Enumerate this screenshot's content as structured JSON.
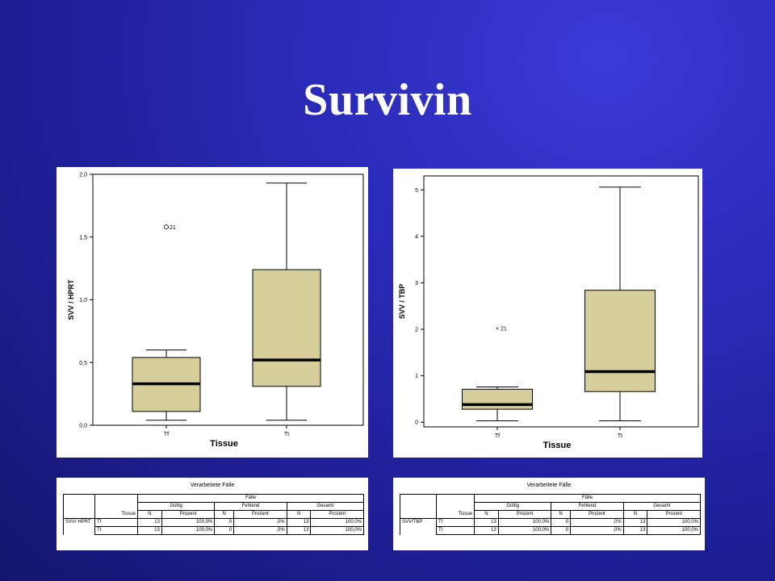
{
  "title": "Survivin",
  "chart_data": [
    {
      "type": "box",
      "xlabel": "Tissue",
      "ylabel": "SVV / HPRT",
      "ylim": [
        0.0,
        2.0
      ],
      "yticks": [
        0.0,
        0.5,
        1.0,
        1.5,
        2.0
      ],
      "ytick_labels": [
        "0,0",
        "0,5",
        "1,0",
        "1,5",
        "2,0"
      ],
      "categories": [
        "Tf",
        "Tt"
      ],
      "boxes": [
        {
          "category": "Tf",
          "min": 0.04,
          "q1": 0.11,
          "median": 0.33,
          "q3": 0.54,
          "max": 0.6
        },
        {
          "category": "Tt",
          "min": 0.04,
          "q1": 0.31,
          "median": 0.52,
          "q3": 1.24,
          "max": 1.93
        }
      ],
      "outliers": [
        {
          "category": "Tf",
          "value": 1.58,
          "label": "21",
          "marker": "o"
        }
      ],
      "box_color": "#d6cf9c"
    },
    {
      "type": "box",
      "xlabel": "Tissue",
      "ylabel": "SVV / TBP",
      "ylim": [
        -0.1,
        5.3
      ],
      "yticks": [
        0,
        1,
        2,
        3,
        4,
        5
      ],
      "ytick_labels": [
        "0",
        "1",
        "2",
        "3",
        "4",
        "5"
      ],
      "categories": [
        "Tf",
        "Tt"
      ],
      "boxes": [
        {
          "category": "Tf",
          "min": 0.03,
          "q1": 0.28,
          "median": 0.38,
          "q3": 0.71,
          "max": 0.76
        },
        {
          "category": "Tt",
          "min": 0.03,
          "q1": 0.66,
          "median": 1.09,
          "q3": 2.84,
          "max": 5.06
        }
      ],
      "outliers": [
        {
          "category": "Tf",
          "value": 2.02,
          "label": "21",
          "marker": "x"
        }
      ],
      "box_color": "#d6cf9c"
    }
  ],
  "tables": [
    {
      "caption": "Verarbeitete Fälle",
      "group_header": "Fälle",
      "row_var": "Tissue",
      "col_groups": [
        "Gültig",
        "Fehlend",
        "Gesamt"
      ],
      "sub_headers": [
        "N",
        "Prozent",
        "N",
        "Prozent",
        "N",
        "Prozent"
      ],
      "dependent": "SVV/ HPRT",
      "rows": [
        {
          "tissue": "Tf",
          "values": [
            "13",
            "100,0%",
            "0",
            ",0%",
            "13",
            "100,0%"
          ]
        },
        {
          "tissue": "Tt",
          "values": [
            "13",
            "100,0%",
            "0",
            ",0%",
            "13",
            "100,0%"
          ]
        }
      ]
    },
    {
      "caption": "Verarbeitete Fälle",
      "group_header": "Fälle",
      "row_var": "Tissue",
      "col_groups": [
        "Gültig",
        "Fehlend",
        "Gesamt"
      ],
      "sub_headers": [
        "N",
        "Prozent",
        "N",
        "Prozent",
        "N",
        "Prozent"
      ],
      "dependent": "SVV/TBP",
      "rows": [
        {
          "tissue": "Tf",
          "values": [
            "13",
            "100,0%",
            "0",
            ",0%",
            "13",
            "100,0%"
          ]
        },
        {
          "tissue": "Tt",
          "values": [
            "13",
            "100,0%",
            "0",
            ",0%",
            "13",
            "100,0%"
          ]
        }
      ]
    }
  ]
}
